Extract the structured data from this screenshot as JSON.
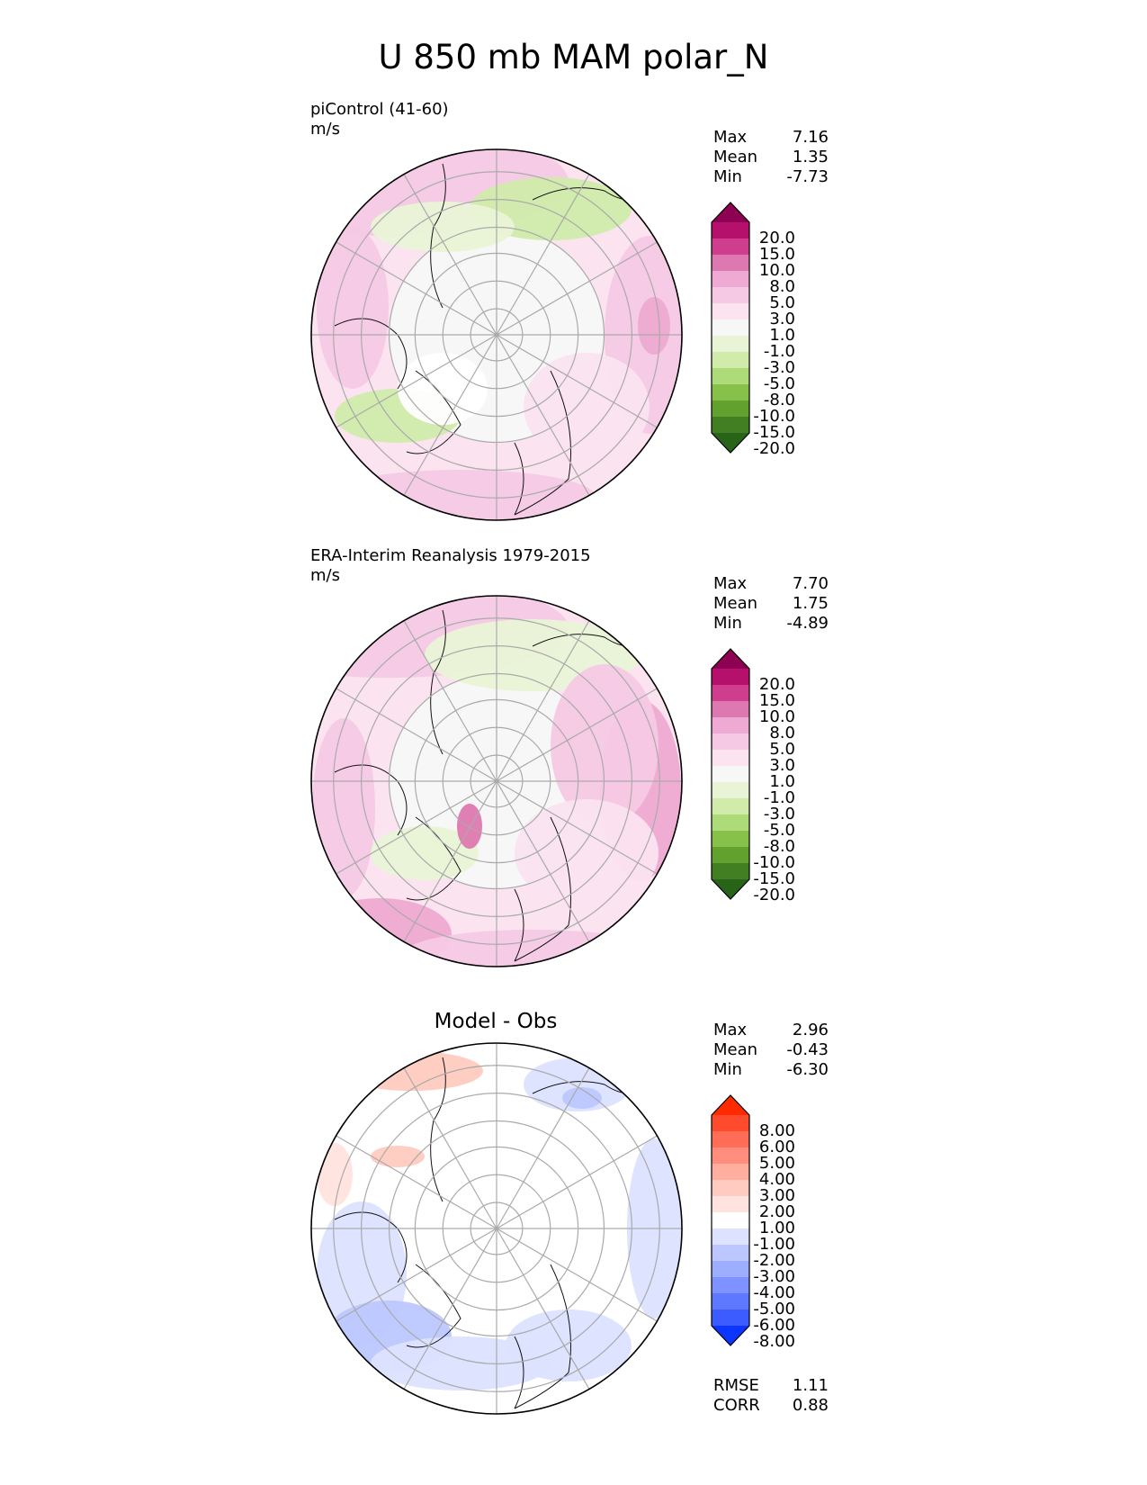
{
  "figure_title": "U 850 mb MAM polar_N",
  "panels": [
    {
      "label_line1": "piControl (41-60)",
      "label_line2": "m/s",
      "stats": {
        "max_label": "Max",
        "max": "7.16",
        "mean_label": "Mean",
        "mean": "1.35",
        "min_label": "Min",
        "min": "-7.73"
      },
      "colorbar": {
        "ticks": [
          "20.0",
          "15.0",
          "10.0",
          "8.0",
          "5.0",
          "3.0",
          "1.0",
          "-1.0",
          "-3.0",
          "-5.0",
          "-8.0",
          "-10.0",
          "-15.0",
          "-20.0"
        ],
        "colors": [
          "#8e0152",
          "#b5106b",
          "#cf3d8d",
          "#de78b0",
          "#eeaad2",
          "#f5c9e4",
          "#fbe3f0",
          "#f7f7f7",
          "#e9f4d6",
          "#d0ebaa",
          "#addb79",
          "#88c149",
          "#62a12d",
          "#427f22",
          "#276419"
        ]
      }
    },
    {
      "label_line1": "ERA-Interim Reanalysis 1979-2015",
      "label_line2": "m/s",
      "stats": {
        "max_label": "Max",
        "max": "7.70",
        "mean_label": "Mean",
        "mean": "1.75",
        "min_label": "Min",
        "min": "-4.89"
      },
      "colorbar": {
        "ticks": [
          "20.0",
          "15.0",
          "10.0",
          "8.0",
          "5.0",
          "3.0",
          "1.0",
          "-1.0",
          "-3.0",
          "-5.0",
          "-8.0",
          "-10.0",
          "-15.0",
          "-20.0"
        ],
        "colors": [
          "#8e0152",
          "#b5106b",
          "#cf3d8d",
          "#de78b0",
          "#eeaad2",
          "#f5c9e4",
          "#fbe3f0",
          "#f7f7f7",
          "#e9f4d6",
          "#d0ebaa",
          "#addb79",
          "#88c149",
          "#62a12d",
          "#427f22",
          "#276419"
        ]
      }
    },
    {
      "panel_title": "Model - Obs",
      "stats": {
        "max_label": "Max",
        "max": "2.96",
        "mean_label": "Mean",
        "mean": "-0.43",
        "min_label": "Min",
        "min": "-6.30"
      },
      "colorbar": {
        "ticks": [
          "8.00",
          "6.00",
          "5.00",
          "4.00",
          "3.00",
          "2.00",
          "1.00",
          "-1.00",
          "-2.00",
          "-3.00",
          "-4.00",
          "-5.00",
          "-6.00",
          "-8.00"
        ],
        "colors": [
          "#ff2a00",
          "#ff4b2d",
          "#ff6d57",
          "#ff8e7e",
          "#ffae9f",
          "#ffcbc0",
          "#ffe3de",
          "#ffffff",
          "#dce2ff",
          "#bcc7ff",
          "#9eaeff",
          "#7e93ff",
          "#5e78ff",
          "#3d5cff",
          "#0c35ff"
        ]
      },
      "metrics": {
        "rmse_label": "RMSE",
        "rmse": "1.11",
        "corr_label": "CORR",
        "corr": "0.88"
      }
    }
  ],
  "chart_data": [
    {
      "type": "heatmap",
      "projection": "north-polar-stereographic",
      "title": "piControl (41-60)",
      "units": "m/s",
      "max": 7.16,
      "mean": 1.35,
      "min": -7.73,
      "levels": [
        -20,
        -15,
        -10,
        -8,
        -5,
        -3,
        -1,
        1,
        3,
        5,
        8,
        10,
        15,
        20
      ]
    },
    {
      "type": "heatmap",
      "projection": "north-polar-stereographic",
      "title": "ERA-Interim Reanalysis 1979-2015",
      "units": "m/s",
      "max": 7.7,
      "mean": 1.75,
      "min": -4.89,
      "levels": [
        -20,
        -15,
        -10,
        -8,
        -5,
        -3,
        -1,
        1,
        3,
        5,
        8,
        10,
        15,
        20
      ]
    },
    {
      "type": "heatmap",
      "projection": "north-polar-stereographic",
      "title": "Model - Obs",
      "max": 2.96,
      "mean": -0.43,
      "min": -6.3,
      "rmse": 1.11,
      "corr": 0.88,
      "levels": [
        -8,
        -6,
        -5,
        -4,
        -3,
        -2,
        -1,
        1,
        2,
        3,
        4,
        5,
        6,
        8
      ]
    }
  ]
}
